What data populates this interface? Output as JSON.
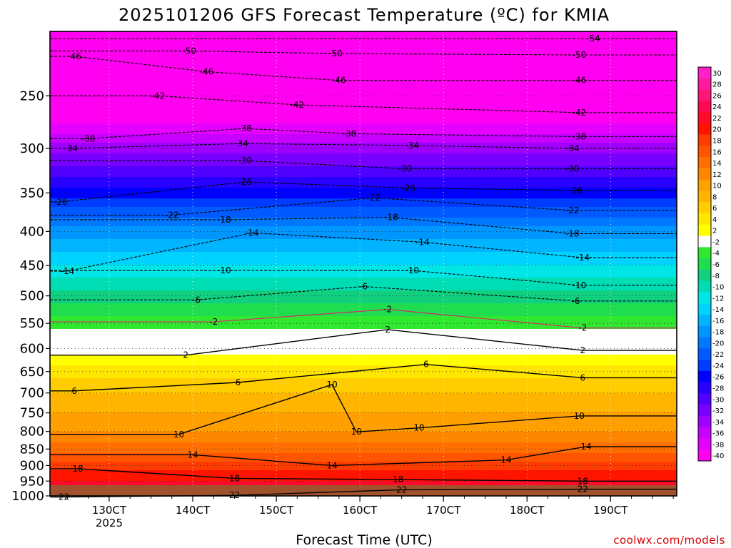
{
  "chart_data": {
    "type": "heatmap",
    "title": "2025101206 GFS Forecast Temperature (ºC) for KMIA",
    "xlabel": "Forecast Time (UTC)",
    "ylabel": "",
    "x_ticks": [
      {
        "label": "130CT",
        "hours": 17
      },
      {
        "label": "140CT",
        "hours": 41
      },
      {
        "label": "150CT",
        "hours": 65
      },
      {
        "label": "160CT",
        "hours": 89
      },
      {
        "label": "170CT",
        "hours": 113
      },
      {
        "label": "180CT",
        "hours": 137
      },
      {
        "label": "190CT",
        "hours": 161
      }
    ],
    "x_sublabel": "2025",
    "xlim_hours": [
      0,
      180
    ],
    "y_ticks": [
      250,
      300,
      350,
      400,
      450,
      500,
      550,
      600,
      650,
      700,
      750,
      800,
      850,
      900,
      950,
      1000
    ],
    "ylim_hpa": [
      200,
      1000
    ],
    "y_scale": "log-pressure",
    "colorbar": {
      "labels": [
        30,
        28,
        26,
        24,
        22,
        20,
        18,
        16,
        14,
        12,
        10,
        8,
        6,
        4,
        2,
        -2,
        -4,
        -6,
        -8,
        -10,
        -12,
        -14,
        -16,
        -18,
        -20,
        -22,
        -24,
        -26,
        -28,
        -30,
        -32,
        -34,
        -36,
        -38,
        -40
      ],
      "colors": [
        "#ff20c8",
        "#ff1aa0",
        "#ff1478",
        "#ff0a50",
        "#ff0a28",
        "#ff1400",
        "#ff3c00",
        "#ff5500",
        "#ff6e00",
        "#ff8700",
        "#ffa000",
        "#ffb400",
        "#ffcd00",
        "#ffe600",
        "#ffff00",
        "#ffffff",
        "#30e830",
        "#20dd50",
        "#10d080",
        "#00dcb4",
        "#00e6e6",
        "#00d2ff",
        "#00b4ff",
        "#0096ff",
        "#0078ff",
        "#005aff",
        "#003cff",
        "#0000ff",
        "#2800ff",
        "#5000ff",
        "#7800ff",
        "#a000ff",
        "#c800ff",
        "#e600ff",
        "#ff00f0"
      ]
    },
    "levels": [
      {
        "p": 200,
        "t": -56
      },
      {
        "p": 250,
        "t": -43
      },
      {
        "p": 300,
        "t": -33
      },
      {
        "p": 350,
        "t": -25
      },
      {
        "p": 400,
        "t": -17
      },
      {
        "p": 450,
        "t": -12
      },
      {
        "p": 500,
        "t": -7
      },
      {
        "p": 550,
        "t": -3
      },
      {
        "p": 600,
        "t": 1
      },
      {
        "p": 650,
        "t": 5
      },
      {
        "p": 700,
        "t": 8
      },
      {
        "p": 750,
        "t": 10
      },
      {
        "p": 800,
        "t": 12
      },
      {
        "p": 850,
        "t": 15
      },
      {
        "p": 900,
        "t": 19
      },
      {
        "p": 950,
        "t": 22
      },
      {
        "p": 1000,
        "t": 24
      }
    ],
    "contour_labels": [
      {
        "value": "-54",
        "hours": 156,
        "p": 205
      },
      {
        "value": "-50",
        "hours": 40,
        "p": 214
      },
      {
        "value": "-50",
        "hours": 82,
        "p": 216
      },
      {
        "value": "-50",
        "hours": 152,
        "p": 217
      },
      {
        "value": "-46",
        "hours": 7,
        "p": 218
      },
      {
        "value": "-46",
        "hours": 45,
        "p": 230
      },
      {
        "value": "-46",
        "hours": 83,
        "p": 237
      },
      {
        "value": "-46",
        "hours": 152,
        "p": 237
      },
      {
        "value": "-42",
        "hours": 31,
        "p": 250
      },
      {
        "value": "-42",
        "hours": 71,
        "p": 258
      },
      {
        "value": "-42",
        "hours": 152,
        "p": 265
      },
      {
        "value": "-38",
        "hours": 56,
        "p": 280
      },
      {
        "value": "-38",
        "hours": 86,
        "p": 285
      },
      {
        "value": "-38",
        "hours": 152,
        "p": 288
      },
      {
        "value": "-38",
        "hours": 11,
        "p": 290
      },
      {
        "value": "-34",
        "hours": 55,
        "p": 295
      },
      {
        "value": "-34",
        "hours": 104,
        "p": 297
      },
      {
        "value": "-34",
        "hours": 150,
        "p": 300
      },
      {
        "value": "-34",
        "hours": 6,
        "p": 300
      },
      {
        "value": "-30",
        "hours": 56,
        "p": 313
      },
      {
        "value": "-30",
        "hours": 102,
        "p": 322
      },
      {
        "value": "-30",
        "hours": 150,
        "p": 322
      },
      {
        "value": "-26",
        "hours": 56,
        "p": 337
      },
      {
        "value": "-26",
        "hours": 103,
        "p": 344
      },
      {
        "value": "-26",
        "hours": 151,
        "p": 347
      },
      {
        "value": "-26",
        "hours": 3,
        "p": 361
      },
      {
        "value": "-22",
        "hours": 35,
        "p": 378
      },
      {
        "value": "-22",
        "hours": 93,
        "p": 356
      },
      {
        "value": "-22",
        "hours": 150,
        "p": 372
      },
      {
        "value": "-18",
        "hours": 50,
        "p": 384
      },
      {
        "value": "-18",
        "hours": 98,
        "p": 381
      },
      {
        "value": "-18",
        "hours": 150,
        "p": 403
      },
      {
        "value": "-14",
        "hours": 58,
        "p": 402
      },
      {
        "value": "-14",
        "hours": 107,
        "p": 415
      },
      {
        "value": "-14",
        "hours": 153,
        "p": 438
      },
      {
        "value": "-14",
        "hours": 5,
        "p": 459
      },
      {
        "value": "-10",
        "hours": 50,
        "p": 458
      },
      {
        "value": "-10",
        "hours": 104,
        "p": 458
      },
      {
        "value": "-10",
        "hours": 152,
        "p": 482
      },
      {
        "value": "-6",
        "hours": 42,
        "p": 507
      },
      {
        "value": "-6",
        "hours": 90,
        "p": 484
      },
      {
        "value": "-6",
        "hours": 151,
        "p": 509
      },
      {
        "value": "-2",
        "hours": 47,
        "p": 547
      },
      {
        "value": "-2",
        "hours": 97,
        "p": 524
      },
      {
        "value": "-2",
        "hours": 153,
        "p": 559
      },
      {
        "value": "2",
        "hours": 39,
        "p": 614
      },
      {
        "value": "2",
        "hours": 97,
        "p": 562
      },
      {
        "value": "2",
        "hours": 153,
        "p": 604
      },
      {
        "value": "6",
        "hours": 7,
        "p": 695
      },
      {
        "value": "6",
        "hours": 54,
        "p": 675
      },
      {
        "value": "6",
        "hours": 108,
        "p": 634
      },
      {
        "value": "6",
        "hours": 153,
        "p": 664
      },
      {
        "value": "10",
        "hours": 37,
        "p": 808
      },
      {
        "value": "10",
        "hours": 81,
        "p": 680
      },
      {
        "value": "10",
        "hours": 88,
        "p": 801
      },
      {
        "value": "10",
        "hours": 106,
        "p": 790
      },
      {
        "value": "10",
        "hours": 152,
        "p": 758
      },
      {
        "value": "14",
        "hours": 41,
        "p": 867
      },
      {
        "value": "14",
        "hours": 81,
        "p": 900
      },
      {
        "value": "14",
        "hours": 131,
        "p": 883
      },
      {
        "value": "14",
        "hours": 154,
        "p": 843
      },
      {
        "value": "18",
        "hours": 8,
        "p": 910
      },
      {
        "value": "18",
        "hours": 53,
        "p": 941
      },
      {
        "value": "18",
        "hours": 100,
        "p": 945
      },
      {
        "value": "18",
        "hours": 153,
        "p": 950
      },
      {
        "value": "22",
        "hours": 4,
        "p": 1004
      },
      {
        "value": "22",
        "hours": 53,
        "p": 998
      },
      {
        "value": "22",
        "hours": 101,
        "p": 979
      },
      {
        "value": "22",
        "hours": 153,
        "p": 977
      }
    ]
  },
  "credit": "coolwx.com/models"
}
